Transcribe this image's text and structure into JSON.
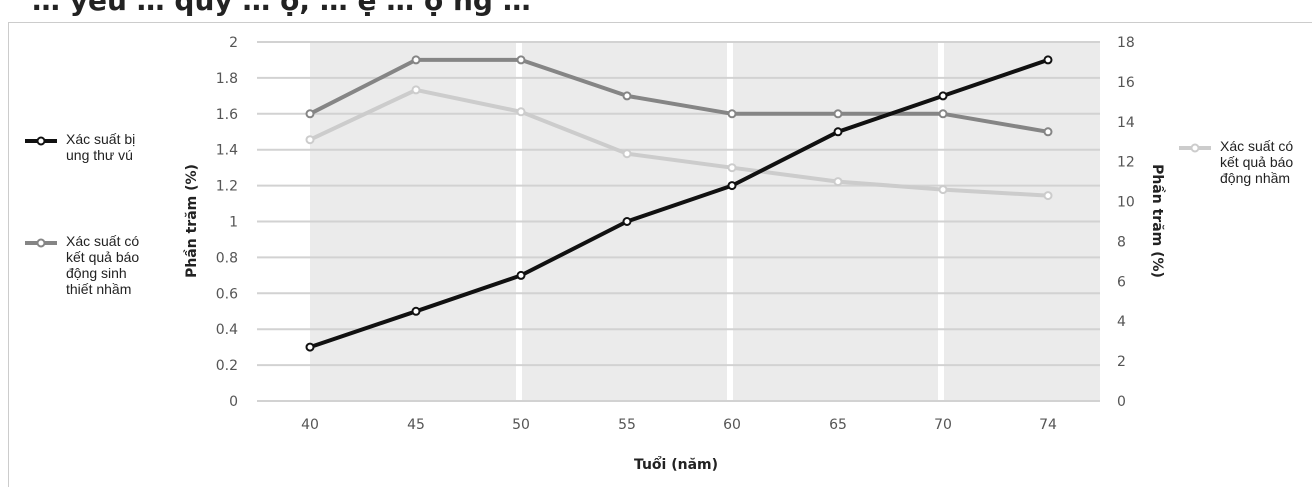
{
  "title": "… yếu … quy … ọ, … ệ … ộ ng …",
  "chart_data": {
    "type": "line",
    "x": [
      40,
      45,
      50,
      55,
      60,
      65,
      70,
      74
    ],
    "x_tick_labels": [
      "40",
      "45",
      "50",
      "55",
      "60",
      "65",
      "70",
      "74"
    ],
    "xlabel": "Tuổi (năm)",
    "ylabel_left": "Phần trăm (%)",
    "ylabel_right": "Phần trăm (%)",
    "ylim_left": [
      0,
      2
    ],
    "ylim_right": [
      0,
      18
    ],
    "y_ticks_left": [
      "0",
      "0.2",
      "0.4",
      "0.6",
      "0.8",
      "1",
      "1.2",
      "1.4",
      "1.6",
      "1.8",
      "2"
    ],
    "y_ticks_right": [
      "0",
      "2",
      "4",
      "6",
      "8",
      "10",
      "12",
      "14",
      "16",
      "18"
    ],
    "grid": true,
    "series": [
      {
        "name": "Xác suất bị ung thư vú",
        "axis": "left",
        "color": "#111111",
        "values": [
          0.3,
          0.5,
          0.7,
          1.0,
          1.2,
          1.5,
          1.7,
          1.9
        ]
      },
      {
        "name": "Xác suất có kết quả báo động sinh thiết nhầm",
        "axis": "left",
        "color": "#858585",
        "values": [
          1.6,
          1.9,
          1.9,
          1.7,
          1.6,
          1.6,
          1.6,
          1.5
        ]
      },
      {
        "name": "Xác suất có kết quả báo động nhầm",
        "axis": "right",
        "color": "#cccccc",
        "values": [
          13.1,
          15.6,
          14.5,
          12.4,
          11.7,
          11.0,
          10.6,
          10.3
        ]
      }
    ],
    "legend": {
      "left": [
        "Xác suất bị ung thư vú",
        "Xác suất có kết quả báo động sinh thiết nhầm"
      ],
      "right": [
        "Xác suất có kết quả báo động nhầm"
      ]
    }
  },
  "colors": {
    "band": "#ebebeb",
    "grid": "#d2d2d2",
    "axis_text": "#555555"
  }
}
